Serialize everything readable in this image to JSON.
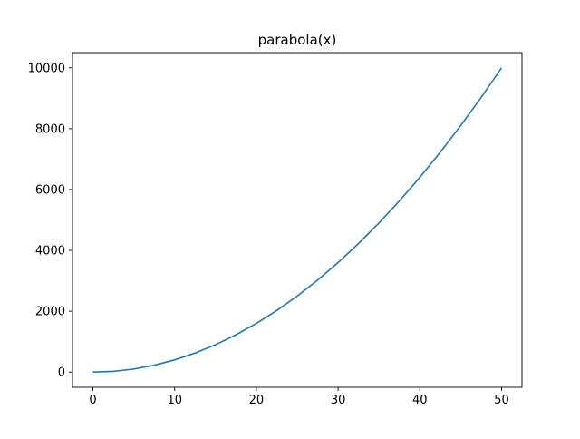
{
  "chart_data": {
    "type": "line",
    "title": "parabola(x)",
    "xlabel": "",
    "ylabel": "",
    "xlim": [
      -2.5,
      52.5
    ],
    "ylim": [
      -500,
      10500
    ],
    "x_ticks": [
      0,
      10,
      20,
      30,
      40,
      50
    ],
    "y_ticks": [
      0,
      2000,
      4000,
      6000,
      8000,
      10000
    ],
    "x_tick_labels": [
      "0",
      "10",
      "20",
      "30",
      "40",
      "50"
    ],
    "y_tick_labels": [
      "0",
      "2000",
      "4000",
      "6000",
      "8000",
      "10000"
    ],
    "grid": false,
    "series": [
      {
        "color": "#1f77b4",
        "x": [
          0,
          2.5,
          5,
          7.5,
          10,
          12.5,
          15,
          17.5,
          20,
          22.5,
          25,
          27.5,
          30,
          32.5,
          35,
          37.5,
          40,
          42.5,
          45,
          47.5,
          50
        ],
        "y": [
          0,
          25,
          100,
          225,
          400,
          625,
          900,
          1225,
          1600,
          2025,
          2500,
          3025,
          3600,
          4225,
          4900,
          5625,
          6400,
          7225,
          8100,
          9025,
          10000
        ]
      }
    ]
  }
}
